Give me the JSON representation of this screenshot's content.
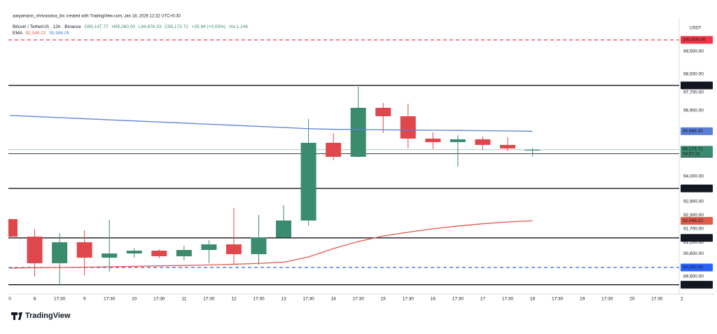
{
  "header": {
    "credit": "aaryamann_shrivastava_bic created with TradingView.com, Jan 18, 2026 12:32 UTC+5:30",
    "symbol": "Bitcoin / TetherUS · 12h · Binance",
    "open": "O95,147.77",
    "high": "H95,260.00",
    "low": "L94,876.33",
    "close": "C95,173.71",
    "change": "+25.94 (+0.03%)",
    "volume": "Vol 1.14K",
    "ema_label": "EMA",
    "ema_slow": "92,048.22",
    "ema_fast": "95,986.05"
  },
  "footer": {
    "logo": "TradingView"
  },
  "chart_data": {
    "type": "candlestick",
    "currency": "USDT",
    "categories": [
      "0",
      "8",
      "17:30",
      "9",
      "17:30",
      "10",
      "17:30",
      "11",
      "17:30",
      "12",
      "17:30",
      "13",
      "17:30",
      "14",
      "17:30",
      "15",
      "17:30",
      "16",
      "17:30",
      "17",
      "17:30",
      "18",
      "17:30",
      "19",
      "17:30",
      "20",
      "17:30",
      "2"
    ],
    "open": [
      92123,
      91354,
      90185,
      91108,
      90431,
      90615,
      90738,
      90492,
      90769,
      91015,
      90585,
      91323,
      92062,
      95477,
      94862,
      97015,
      96646,
      95662,
      95508,
      95631,
      95385,
      95147.77,
      null,
      null,
      null,
      null,
      null,
      null
    ],
    "high": [
      92150,
      91692,
      91508,
      91631,
      92092,
      90831,
      90800,
      90954,
      91200,
      92615,
      92308,
      92738,
      96523,
      95908,
      97938,
      97231,
      97200,
      95938,
      95815,
      95754,
      95723,
      95260,
      null,
      null,
      null,
      null,
      null,
      null
    ],
    "low": [
      91300,
      89600,
      89231,
      89662,
      89815,
      90431,
      90400,
      90308,
      90185,
      90154,
      90123,
      91290,
      91846,
      94708,
      94831,
      95908,
      95231,
      95200,
      94431,
      95169,
      95108,
      94876.33,
      null,
      null,
      null,
      null,
      null,
      null
    ],
    "close": [
      91354,
      90185,
      91108,
      90431,
      90615,
      90738,
      90492,
      90769,
      91015,
      90585,
      91323,
      92062,
      95477,
      94862,
      97015,
      96646,
      95662,
      95508,
      95631,
      95385,
      95231,
      95173.71,
      null,
      null,
      null,
      null,
      null,
      null
    ],
    "up_color": "#3b8c6e",
    "down_color": "#e0474c",
    "series": [
      {
        "name": "EMA fast",
        "color": "#5b7fd6",
        "values": [
          96680,
          96632,
          96584,
          96536,
          96488,
          96440,
          96392,
          96344,
          96296,
          96248,
          96200,
          96150,
          96100,
          96070,
          96060,
          96050,
          96040,
          96030,
          96020,
          96010,
          96000,
          95986.05,
          null,
          null,
          null,
          null,
          null,
          null
        ]
      },
      {
        "name": "EMA slow",
        "color": "#e05a4a",
        "values": [
          89970,
          89990,
          90000,
          90010,
          90030,
          90050,
          90070,
          90090,
          90110,
          90140,
          90180,
          90230,
          90462,
          90830,
          91138,
          91385,
          91550,
          91700,
          91820,
          91920,
          92000,
          92048.22,
          null,
          null,
          null,
          null,
          null,
          null
        ]
      }
    ],
    "ylim": [
      88830,
      100830
    ],
    "yticks": [
      {
        "value": 99500,
        "label": "99,500.00"
      },
      {
        "value": 98500,
        "label": "98,500.00"
      },
      {
        "value": 97700,
        "label": "97,700.00"
      },
      {
        "value": 96900,
        "label": "96,900.00"
      },
      {
        "value": 94000,
        "label": "94,000.00"
      },
      {
        "value": 92900,
        "label": "92,900.00"
      },
      {
        "value": 92300,
        "label": "92,300.00"
      },
      {
        "value": 91700,
        "label": "91,700.00"
      },
      {
        "value": 91100,
        "label": "91,100.00"
      },
      {
        "value": 90600,
        "label": "90,600.00"
      },
      {
        "value": 89600,
        "label": "89,600.00"
      }
    ],
    "hlines": [
      {
        "value": 100000,
        "label": "100,000.00",
        "color": "#f23645",
        "style": "dashed"
      },
      {
        "value": 98000,
        "label": "98,000.00",
        "color": "#000000",
        "style": "solid"
      },
      {
        "value": 95000,
        "label": "95,000.00",
        "color": "#000000",
        "style": "thin"
      },
      {
        "value": 93471.71,
        "label": "93,471.71",
        "color": "#000000",
        "style": "solid"
      },
      {
        "value": 91298.14,
        "label": "91,298.14",
        "color": "#000000",
        "style": "solid"
      },
      {
        "value": 90000,
        "label": "90,000.00",
        "color": "#2962ff",
        "style": "dashed"
      },
      {
        "value": 89241.08,
        "label": "89,241.08",
        "color": "#000000",
        "style": "solid"
      }
    ],
    "series_tags": [
      {
        "value": 95986.05,
        "label": "95,986.05",
        "color": "#5b7fd6"
      },
      {
        "value": 92048.22,
        "label": "92,048.22",
        "color": "#e05a4a"
      }
    ],
    "current": {
      "value": 95173.71,
      "label": "95,173.71",
      "countdown": "04:57:31",
      "color": "#3b8c6e"
    },
    "grid": false
  }
}
